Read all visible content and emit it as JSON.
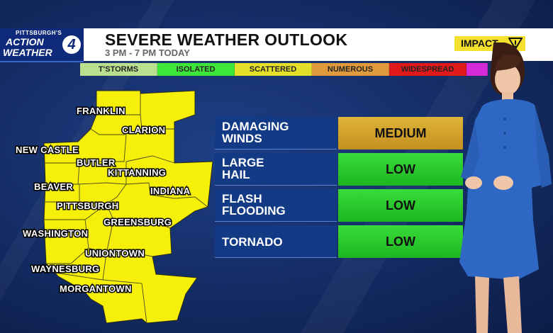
{
  "brand": {
    "line1": "PITTSBURGH'S",
    "line2": "ACTION",
    "line3": "WEATHER",
    "channel": "4"
  },
  "header": {
    "title": "SEVERE WEATHER OUTLOOK",
    "subtitle": "3 PM - 7 PM TODAY",
    "impact_label": "IMPACT",
    "impact_icon": "warning-triangle-icon"
  },
  "scale": [
    {
      "label": "T'STORMS",
      "color": "#b8e08e"
    },
    {
      "label": "ISOLATED",
      "color": "#3ee63a"
    },
    {
      "label": "SCATTERED",
      "color": "#e4e02a"
    },
    {
      "label": "NUMEROUS",
      "color": "#e09a3c"
    },
    {
      "label": "WIDESPREAD",
      "color": "#e01a1a"
    },
    {
      "label": "",
      "color": "#d42ad8"
    }
  ],
  "map": {
    "fill": "#f6ef0a",
    "counties": [
      "FRANKLIN",
      "CLARION",
      "NEW CASTLE",
      "BUTLER",
      "KITTANNING",
      "INDIANA",
      "BEAVER",
      "PITTSBURGH",
      "GREENSBURG",
      "WASHINGTON",
      "UNIONTOWN",
      "WAYNESBURG",
      "MORGANTOWN"
    ]
  },
  "threats": [
    {
      "line1": "DAMAGING",
      "line2": "WINDS",
      "level": "MEDIUM",
      "level_key": "medium"
    },
    {
      "line1": "LARGE",
      "line2": "HAIL",
      "level": "LOW",
      "level_key": "low"
    },
    {
      "line1": "FLASH",
      "line2": "FLOODING",
      "level": "LOW",
      "level_key": "low"
    },
    {
      "line1": "TORNADO",
      "line2": "",
      "level": "LOW",
      "level_key": "low"
    }
  ],
  "colors": {
    "navy": "#123a85",
    "medium": "#d7a52c",
    "low": "#2bc92d",
    "impact": "#f4e12e"
  }
}
